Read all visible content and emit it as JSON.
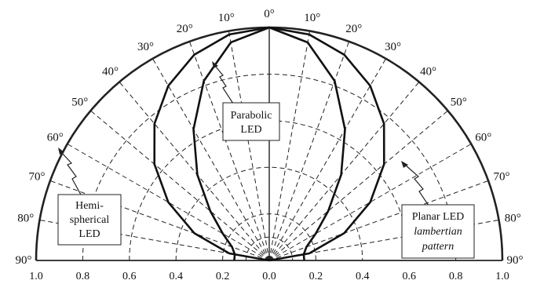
{
  "chart_data": {
    "type": "polar-radiation-pattern",
    "r_range": [
      0.0,
      1.0
    ],
    "angle_range_deg": [
      -90,
      90
    ],
    "radial_ticks": [
      0.2,
      0.4,
      0.6,
      0.8,
      1.0
    ],
    "angle_ticks_deg": [
      0,
      10,
      20,
      30,
      40,
      50,
      60,
      70,
      80,
      90
    ],
    "grid": true,
    "x_tick_labels": [
      "1.0",
      "0.8",
      "0.6",
      "0.4",
      "0.2",
      "0.0",
      "0.2",
      "0.4",
      "0.6",
      "0.8",
      "1.0"
    ],
    "angle_labels": [
      "0°",
      "10°",
      "20°",
      "30°",
      "40°",
      "50°",
      "60°",
      "70°",
      "80°",
      "90°"
    ],
    "series": [
      {
        "key": "hemispherical",
        "label_lines": [
          "Hemi-",
          "spherical",
          "LED"
        ],
        "color": "#111111",
        "points": [
          {
            "angle": 0,
            "r": 1.0
          },
          {
            "angle": 10,
            "r": 1.0
          },
          {
            "angle": 20,
            "r": 1.0
          },
          {
            "angle": 30,
            "r": 1.0
          },
          {
            "angle": 40,
            "r": 1.0
          },
          {
            "angle": 50,
            "r": 1.0
          },
          {
            "angle": 60,
            "r": 1.0
          },
          {
            "angle": 70,
            "r": 1.0
          },
          {
            "angle": 80,
            "r": 1.0
          },
          {
            "angle": 90,
            "r": 1.0
          }
        ]
      },
      {
        "key": "planar",
        "label_lines": [
          "Planar LED",
          "lambertian",
          "pattern"
        ],
        "label_italic": [
          false,
          true,
          true
        ],
        "color": "#111111",
        "points": [
          {
            "angle": 0,
            "r": 1.0
          },
          {
            "angle": 10,
            "r": 0.985
          },
          {
            "angle": 20,
            "r": 0.94
          },
          {
            "angle": 30,
            "r": 0.866
          },
          {
            "angle": 40,
            "r": 0.766
          },
          {
            "angle": 50,
            "r": 0.643
          },
          {
            "angle": 60,
            "r": 0.5
          },
          {
            "angle": 70,
            "r": 0.342
          },
          {
            "angle": 80,
            "r": 0.174
          },
          {
            "angle": 90,
            "r": 0.0
          }
        ]
      },
      {
        "key": "parabolic",
        "label_lines": [
          "Parabolic",
          "LED"
        ],
        "color": "#111111",
        "points": [
          {
            "angle": 0,
            "r": 1.0
          },
          {
            "angle": 10,
            "r": 0.95
          },
          {
            "angle": 20,
            "r": 0.82
          },
          {
            "angle": 30,
            "r": 0.65
          },
          {
            "angle": 40,
            "r": 0.48
          },
          {
            "angle": 50,
            "r": 0.33
          },
          {
            "angle": 60,
            "r": 0.23
          },
          {
            "angle": 70,
            "r": 0.17
          },
          {
            "angle": 80,
            "r": 0.15
          },
          {
            "angle": 90,
            "r": 0.15
          }
        ]
      }
    ]
  }
}
